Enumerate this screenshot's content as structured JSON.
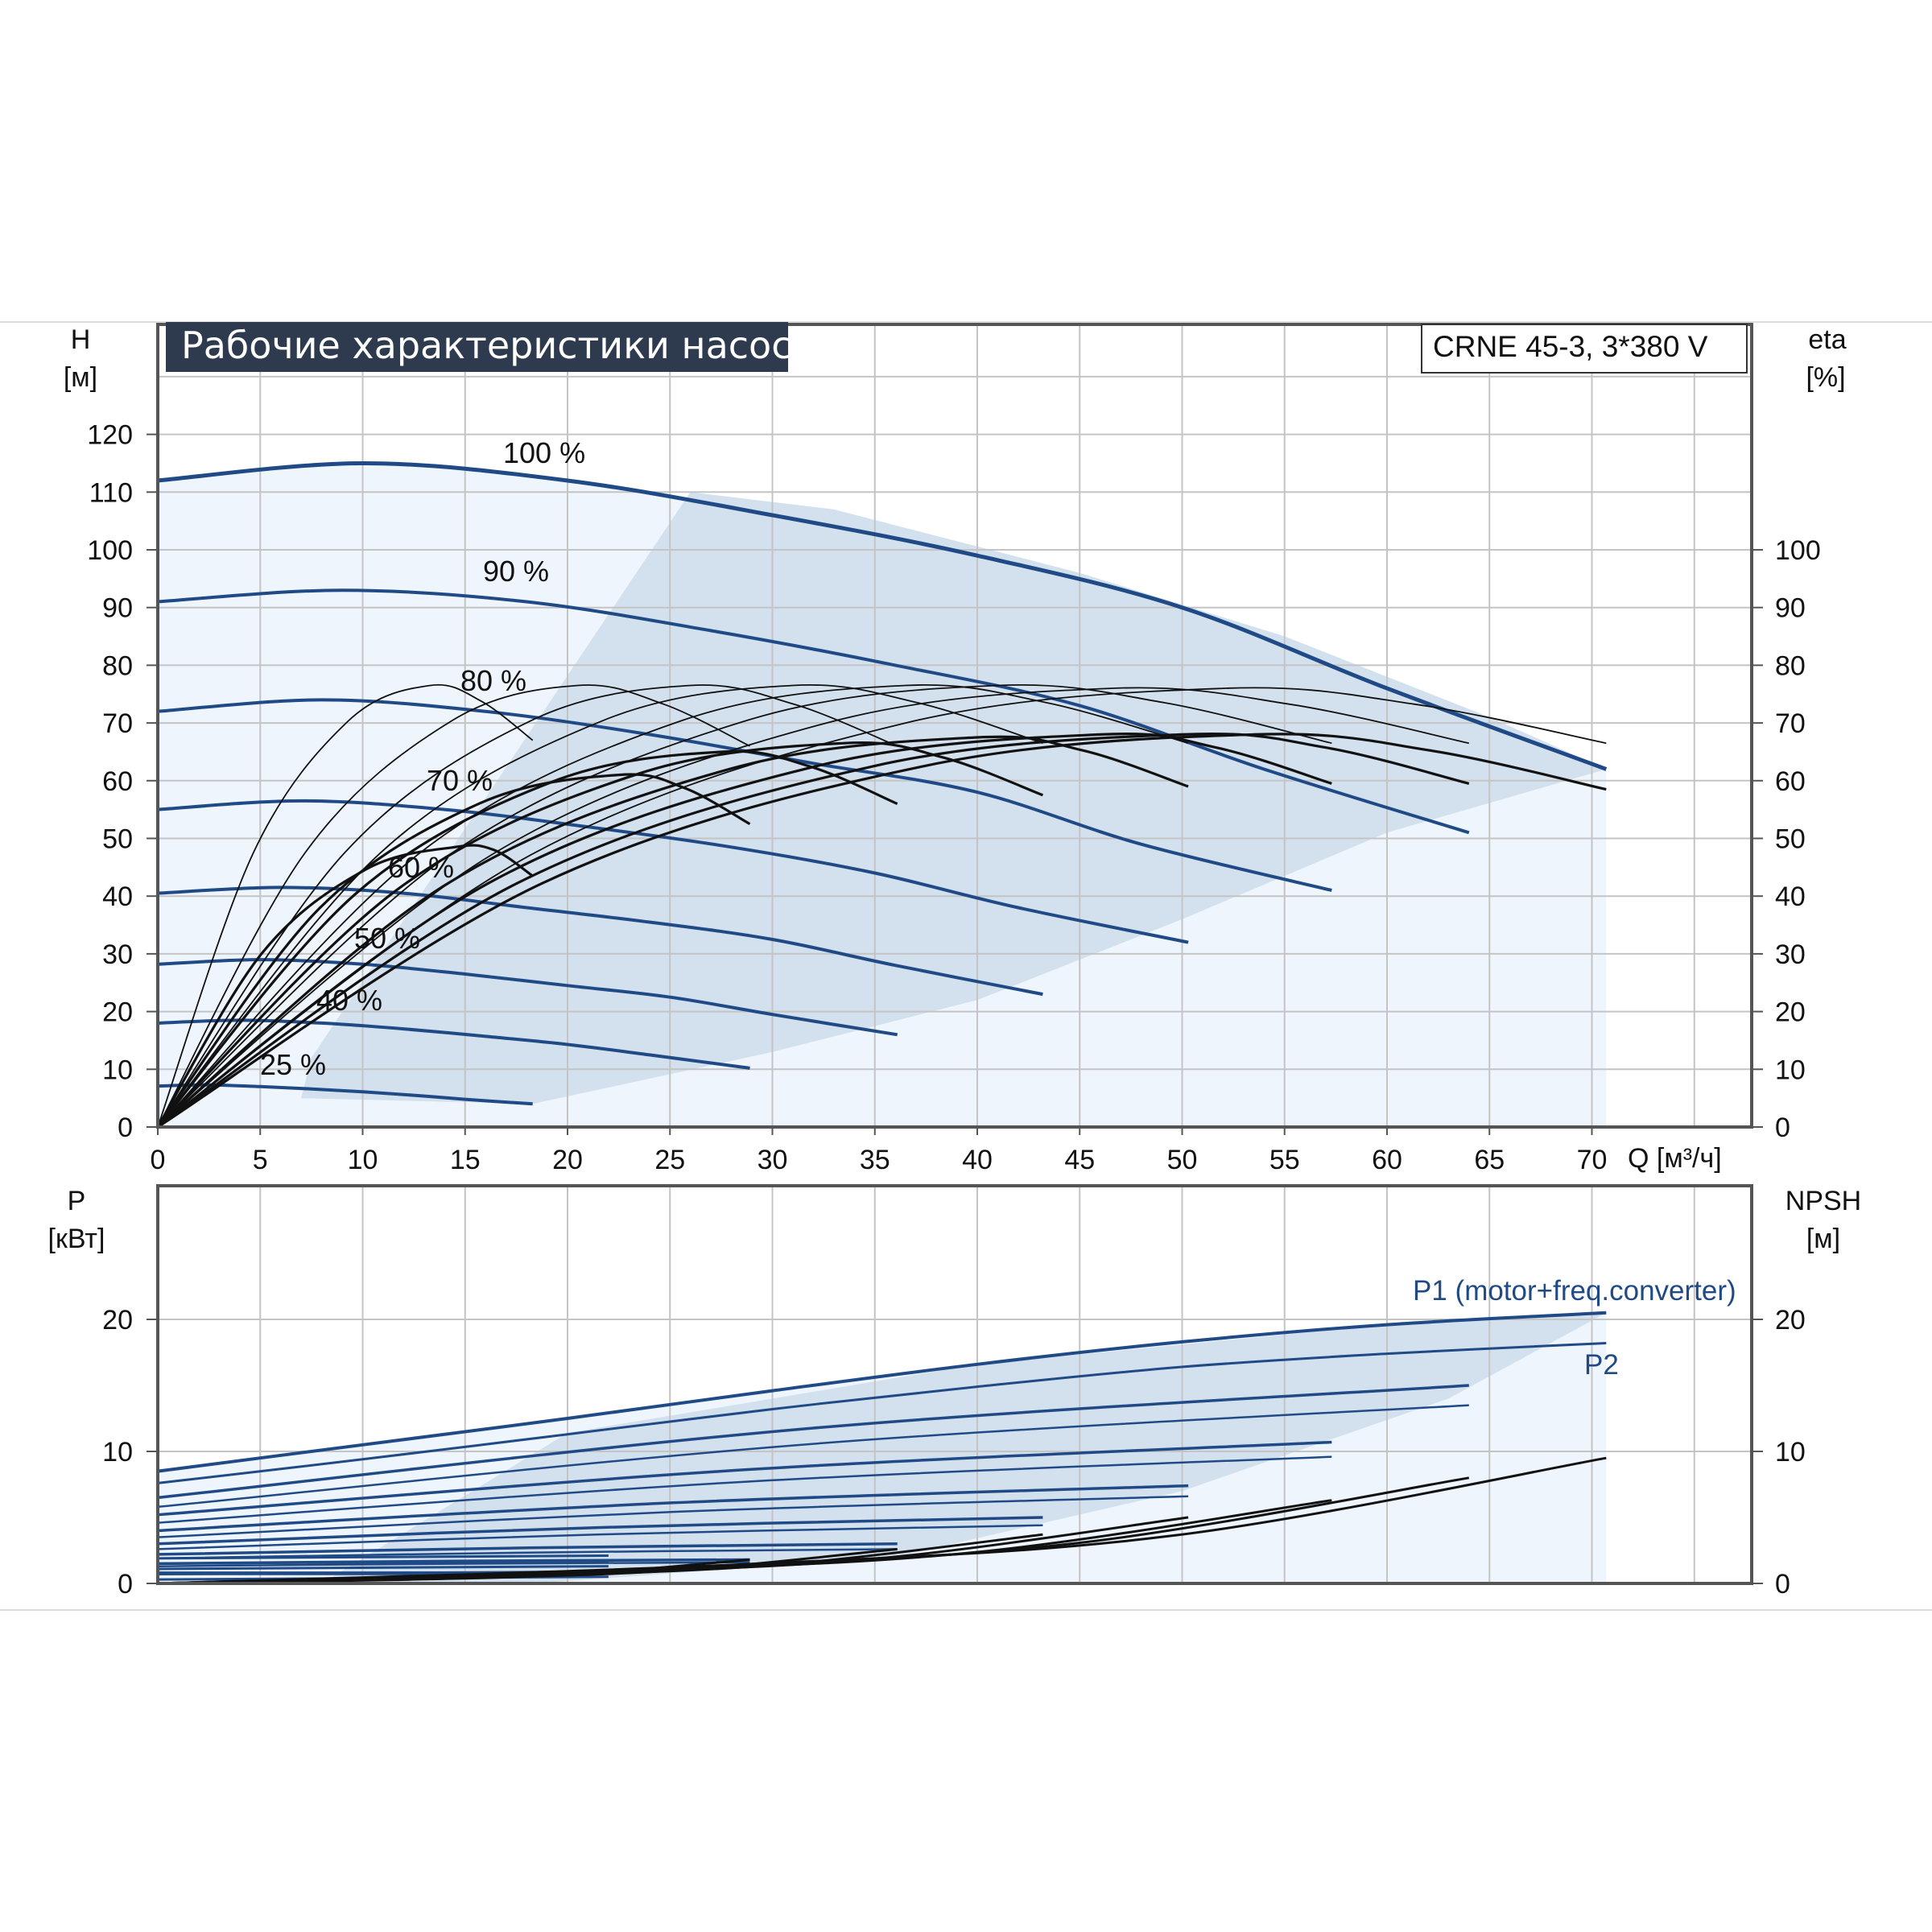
{
  "title": "Рабочие характеристики насоса",
  "model": "CRNE 45-3, 3*380 V",
  "colors": {
    "curve": "#1f4a86",
    "region_light": "#eef5fc",
    "region_dark": "#d3e0ee",
    "grid": "#c4c4c4",
    "title_bg": "#2e3b4e"
  },
  "chart_data": [
    {
      "type": "line",
      "title": "Рабочие характеристики насоса",
      "xlabel": "Q [м³/ч]",
      "ylabel": "H [м]",
      "ylabel_right": "eta [%]",
      "xlim": [
        0,
        77
      ],
      "ylim": [
        0,
        130
      ],
      "x_ticks": [
        "0",
        "5",
        "10",
        "15",
        "20",
        "25",
        "30",
        "35",
        "40",
        "45",
        "50",
        "55",
        "60",
        "65",
        "70"
      ],
      "y_ticks_left": [
        "0",
        "10",
        "20",
        "30",
        "40",
        "50",
        "60",
        "70",
        "80",
        "90",
        "100",
        "110",
        "120"
      ],
      "y_ticks_right": [
        "0",
        "10",
        "20",
        "30",
        "40",
        "50",
        "60",
        "70",
        "80",
        "90",
        "100"
      ],
      "grid": true,
      "qh_series": [
        {
          "name": "100 %",
          "x": [
            0,
            10,
            20,
            30,
            40,
            50,
            60,
            70.7
          ],
          "y": [
            112,
            115,
            112,
            106,
            99,
            90,
            76,
            62
          ]
        },
        {
          "name": "90 %",
          "x": [
            0,
            9,
            18,
            27,
            36,
            45,
            54,
            64
          ],
          "y": [
            91,
            93,
            91,
            86,
            80,
            73,
            62,
            51
          ]
        },
        {
          "name": "80 %",
          "x": [
            0,
            8,
            16,
            24,
            32,
            40,
            48,
            57.3
          ],
          "y": [
            72,
            74,
            72,
            68,
            63,
            58,
            49,
            41
          ]
        },
        {
          "name": "70 %",
          "x": [
            0,
            7,
            14,
            21,
            28,
            35,
            42,
            50.3
          ],
          "y": [
            55,
            56.5,
            55,
            52,
            48.5,
            44,
            38,
            32
          ]
        },
        {
          "name": "60 %",
          "x": [
            0,
            6,
            12,
            18,
            24,
            30,
            36,
            43.2
          ],
          "y": [
            40.5,
            41.5,
            40.5,
            38,
            35.5,
            32.5,
            28,
            23
          ]
        },
        {
          "name": "50 %",
          "x": [
            0,
            5,
            10,
            15,
            20,
            25,
            30,
            36.1
          ],
          "y": [
            28.2,
            29,
            28.2,
            26.5,
            24.5,
            22.5,
            19.5,
            16
          ]
        },
        {
          "name": "40 %",
          "x": [
            0,
            4,
            8,
            12,
            16,
            20,
            24,
            28.9
          ],
          "y": [
            18,
            18.5,
            18,
            17,
            15.7,
            14.3,
            12.5,
            10.2
          ]
        },
        {
          "name": "25 %",
          "x": [
            0,
            2.5,
            5,
            7.5,
            10,
            12.5,
            15,
            18.3
          ],
          "y": [
            7.1,
            7.3,
            7,
            6.6,
            6.1,
            5.5,
            4.8,
            4
          ]
        }
      ],
      "eta_series_peaks": [
        {
          "x_peak": 13.3,
          "eta_peak": 76.5,
          "x_end": 18.3,
          "eta_end": 67
        },
        {
          "x_peak": 20.5,
          "eta_peak": 76.5,
          "x_end": 28.9,
          "eta_end": 66
        },
        {
          "x_peak": 26,
          "eta_peak": 76.5,
          "x_end": 36.1,
          "eta_end": 66
        },
        {
          "x_peak": 31,
          "eta_peak": 76.5,
          "x_end": 43.2,
          "eta_end": 66.5
        },
        {
          "x_peak": 36.5,
          "eta_peak": 76.5,
          "x_end": 50.3,
          "eta_end": 66.5
        },
        {
          "x_peak": 41,
          "eta_peak": 76.5,
          "x_end": 57.3,
          "eta_end": 66.5
        },
        {
          "x_peak": 46.5,
          "eta_peak": 76,
          "x_end": 64,
          "eta_end": 66.5
        },
        {
          "x_peak": 52,
          "eta_peak": 76,
          "x_end": 70.7,
          "eta_end": 66.5
        },
        {
          "x_peak": 14.5,
          "eta_peak": 48.5,
          "x_end": 18.3,
          "eta_end": 43.5
        },
        {
          "x_peak": 22.5,
          "eta_peak": 61,
          "x_end": 28.9,
          "eta_end": 52.5
        },
        {
          "x_peak": 27.5,
          "eta_peak": 65,
          "x_end": 36.1,
          "eta_end": 56
        },
        {
          "x_peak": 33.5,
          "eta_peak": 66.5,
          "x_end": 43.2,
          "eta_end": 57.5
        },
        {
          "x_peak": 40,
          "eta_peak": 67.5,
          "x_end": 50.3,
          "eta_end": 59
        },
        {
          "x_peak": 46,
          "eta_peak": 68,
          "x_end": 57.3,
          "eta_end": 59.5
        },
        {
          "x_peak": 50,
          "eta_peak": 68,
          "x_end": 64,
          "eta_end": 59.5
        },
        {
          "x_peak": 53.5,
          "eta_peak": 68,
          "x_end": 70.7,
          "eta_end": 58.5
        }
      ]
    },
    {
      "type": "line",
      "xlabel": "",
      "ylabel": "P [кВт]",
      "ylabel_right": "NPSH [м]",
      "xlim": [
        0,
        77
      ],
      "ylim": [
        0,
        25
      ],
      "y_ticks_left": [
        "0",
        "10",
        "20"
      ],
      "y_ticks_right": [
        "0",
        "10",
        "20"
      ],
      "grid": true,
      "series": [
        {
          "name": "P1 (motor+freq.converter)",
          "x": [
            0,
            10,
            20,
            30,
            40,
            50,
            60,
            70.7
          ],
          "y": [
            8.5,
            10.5,
            12.5,
            14.6,
            16.6,
            18.3,
            19.6,
            20.5
          ]
        },
        {
          "name": "P2",
          "x": [
            0,
            10,
            20,
            30,
            40,
            50,
            60,
            70.7
          ],
          "y": [
            7.6,
            9.4,
            11.3,
            13.2,
            14.9,
            16.4,
            17.4,
            18.2
          ]
        }
      ],
      "power_levels": [
        {
          "x_end": 64,
          "p1": [
            6.5,
            15
          ],
          "p2": [
            5.8,
            13.5
          ]
        },
        {
          "x_end": 57.3,
          "p1": [
            5.2,
            10.7
          ],
          "p2": [
            4.6,
            9.6
          ]
        },
        {
          "x_end": 50.3,
          "p1": [
            4,
            7.4
          ],
          "p2": [
            3.5,
            6.6
          ]
        },
        {
          "x_end": 43.2,
          "p1": [
            3,
            5
          ],
          "p2": [
            2.6,
            4.4
          ]
        },
        {
          "x_end": 36.1,
          "p1": [
            2.2,
            3
          ],
          "p2": [
            1.9,
            2.6
          ]
        },
        {
          "x_end": 28.9,
          "p1": [
            1.5,
            1.8
          ],
          "p2": [
            1.3,
            1.6
          ]
        },
        {
          "x_end": 18.3,
          "p1": [
            0.8,
            0.8
          ],
          "p2": [
            0.7,
            0.7
          ]
        }
      ],
      "npsh_ends": [
        {
          "x_end": 70.7,
          "y_end": 9.5
        },
        {
          "x_end": 64,
          "y_end": 8
        },
        {
          "x_end": 57.3,
          "y_end": 6.3
        },
        {
          "x_end": 50.3,
          "y_end": 5
        },
        {
          "x_end": 43.2,
          "y_end": 3.7
        },
        {
          "x_end": 36.1,
          "y_end": 2.6
        },
        {
          "x_end": 28.9,
          "y_end": 1.8
        }
      ]
    }
  ]
}
